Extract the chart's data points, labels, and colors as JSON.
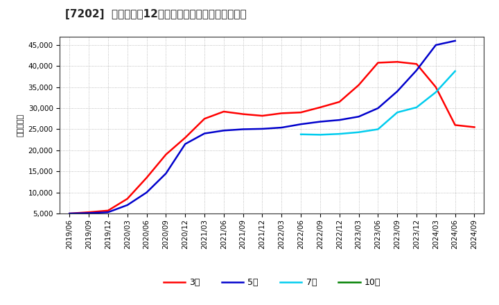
{
  "title": "[7202]  当期純利益12か月移動合計の標準偏差の推移",
  "ylabel": "（百万円）",
  "ylim": [
    5000,
    47000
  ],
  "yticks": [
    5000,
    10000,
    15000,
    20000,
    25000,
    30000,
    35000,
    40000,
    45000
  ],
  "background_color": "#ffffff",
  "plot_bg_color": "#ffffff",
  "grid_color": "#aaaaaa",
  "x_labels": [
    "2019/06",
    "2019/09",
    "2019/12",
    "2020/03",
    "2020/06",
    "2020/09",
    "2020/12",
    "2021/03",
    "2021/06",
    "2021/09",
    "2021/12",
    "2022/03",
    "2022/06",
    "2022/09",
    "2022/12",
    "2023/03",
    "2023/06",
    "2023/09",
    "2023/12",
    "2024/03",
    "2024/06",
    "2024/09"
  ],
  "series_3yr": [
    5000,
    5300,
    5700,
    8500,
    13500,
    19000,
    23000,
    27500,
    29200,
    28600,
    28200,
    28800,
    29000,
    30200,
    31500,
    35500,
    40800,
    41000,
    40500,
    35000,
    26000,
    25500
  ],
  "series_5yr": [
    5000,
    5100,
    5300,
    7000,
    10000,
    14500,
    21500,
    24000,
    24700,
    25000,
    25100,
    25400,
    26200,
    26800,
    27200,
    28000,
    30000,
    34000,
    39000,
    45000,
    46000,
    null
  ],
  "series_7yr": [
    null,
    null,
    null,
    null,
    null,
    null,
    null,
    null,
    null,
    null,
    null,
    null,
    23800,
    23700,
    23900,
    24300,
    25000,
    29000,
    30200,
    33800,
    38800,
    null
  ],
  "series_10yr": [
    null,
    null,
    null,
    null,
    null,
    null,
    null,
    null,
    null,
    null,
    null,
    null,
    null,
    null,
    null,
    null,
    null,
    null,
    null,
    null,
    null,
    null
  ],
  "color_3yr": "#ff0000",
  "color_5yr": "#0000cc",
  "color_7yr": "#00ccee",
  "color_10yr": "#008000",
  "label_3yr": "3年",
  "label_5yr": "5年",
  "label_7yr": "7年",
  "label_10yr": "10年",
  "linewidth": 1.8,
  "title_fontsize": 11,
  "tick_fontsize": 7.5,
  "ylabel_fontsize": 8
}
